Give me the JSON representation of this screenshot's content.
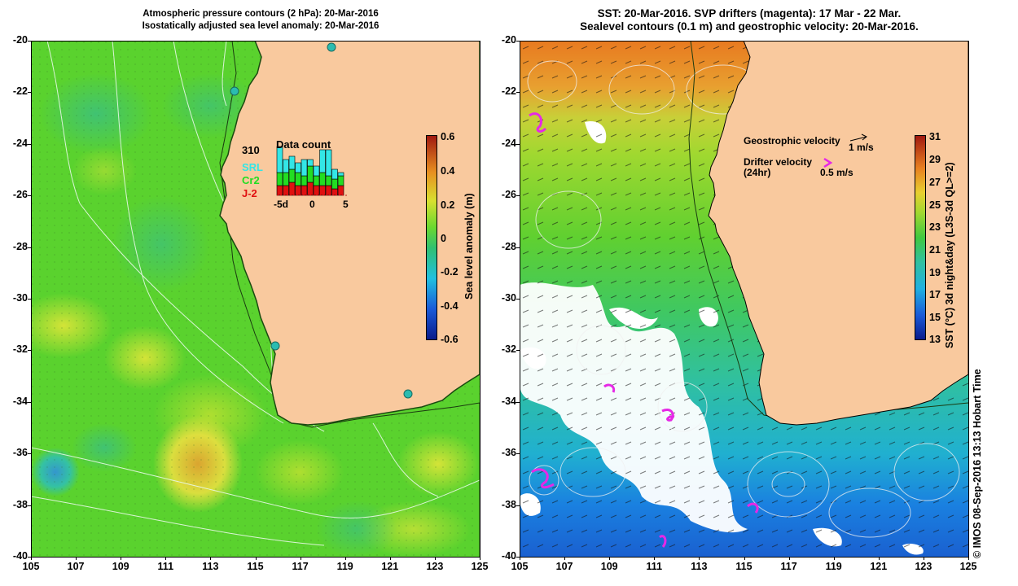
{
  "left_panel": {
    "title_line1": "Atmospheric pressure contours (2 hPa): 20-Mar-2016",
    "title_line2": "Isostatically adjusted sea level anomaly: 20-Mar-2016",
    "y_ticks": [
      "-20",
      "-22",
      "-24",
      "-26",
      "-28",
      "-30",
      "-32",
      "-34",
      "-36",
      "-38",
      "-40"
    ],
    "x_ticks": [
      "105",
      "107",
      "109",
      "111",
      "113",
      "115",
      "117",
      "119",
      "121",
      "123",
      "125"
    ],
    "colorbar": {
      "label": "Sea level anomaly (m)",
      "ticks": [
        "0.6",
        "0.4",
        "0.2",
        "0",
        "-0.2",
        "-0.4",
        "-0.6"
      ],
      "range": [
        -0.6,
        0.6
      ]
    },
    "inset": {
      "count": "310",
      "title": "Data count",
      "missions": [
        {
          "label": "SRL",
          "color": "#33e6e6"
        },
        {
          "label": "Cr2",
          "color": "#22dd22"
        },
        {
          "label": "J-2",
          "color": "#e01010"
        }
      ],
      "x_labels": [
        "-5d",
        "0",
        "5"
      ],
      "bars": [
        {
          "j2": 3,
          "cr2": 4,
          "srl": 8
        },
        {
          "j2": 3,
          "cr2": 4,
          "srl": 4
        },
        {
          "j2": 4,
          "cr2": 4,
          "srl": 4
        },
        {
          "j2": 3,
          "cr2": 4,
          "srl": 3
        },
        {
          "j2": 3,
          "cr2": 3,
          "srl": 5
        },
        {
          "j2": 4,
          "cr2": 5,
          "srl": 2
        },
        {
          "j2": 3,
          "cr2": 3,
          "srl": 3
        },
        {
          "j2": 3,
          "cr2": 4,
          "srl": 7
        },
        {
          "j2": 3,
          "cr2": 3,
          "srl": 8
        },
        {
          "j2": 2,
          "cr2": 3,
          "srl": 3
        },
        {
          "j2": 3,
          "cr2": 3,
          "srl": 1
        }
      ]
    }
  },
  "right_panel": {
    "title_line1": "SST: 20-Mar-2016. SVP drifters (magenta): 17 Mar - 22 Mar.",
    "title_line2": "Sealevel contours (0.1 m) and geostrophic velocity: 20-Mar-2016.",
    "y_ticks": [
      "-20",
      "-22",
      "-24",
      "-26",
      "-28",
      "-30",
      "-32",
      "-34",
      "-36",
      "-38",
      "-40"
    ],
    "x_ticks": [
      "105",
      "107",
      "109",
      "111",
      "113",
      "115",
      "117",
      "119",
      "121",
      "123",
      "125"
    ],
    "colorbar": {
      "label": "SST (°C) 3d night&day (L3S-3d QL>=2)",
      "ticks": [
        "31",
        "29",
        "27",
        "25",
        "23",
        "21",
        "19",
        "17",
        "15",
        "13"
      ],
      "range": [
        13,
        31
      ]
    },
    "legend": {
      "geo_label": "Geostrophic velocity",
      "geo_scale": "1 m/s",
      "drifter_label_1": "Drifter velocity",
      "drifter_label_2": "(24hr)",
      "drifter_scale": "0.5 m/s"
    },
    "credit": "© IMOS 08-Sep-2016 13:13 Hobart Time"
  },
  "colors": {
    "land": "#f9c99e",
    "ocean_green": "#5cd62e",
    "drifter": "#e628e6",
    "coast_line": "#000000"
  }
}
